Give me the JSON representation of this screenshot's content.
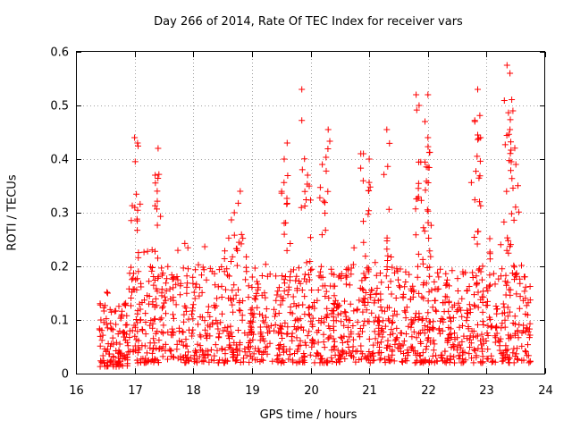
{
  "chart_data": {
    "type": "scatter",
    "title": "Day 266 of 2014, Rate Of TEC Index for receiver vars",
    "xlabel": "GPS time / hours",
    "ylabel": "ROTI / TECUs",
    "xlim": [
      16,
      24
    ],
    "ylim": [
      0,
      0.6
    ],
    "x_ticks": [
      "16",
      "17",
      "18",
      "19",
      "20",
      "21",
      "22",
      "23",
      "24"
    ],
    "y_ticks": [
      "0",
      "0.1",
      "0.2",
      "0.3",
      "0.4",
      "0.5",
      "0.6"
    ],
    "grid": true,
    "marker": "+",
    "color": "#ff0000",
    "series": [
      {
        "name": "ROTI",
        "x_range": [
          16.4,
          23.75
        ],
        "typical_range": [
          0.02,
          0.2
        ],
        "peaks": [
          {
            "x": 17.0,
            "y": 0.44
          },
          {
            "x": 17.05,
            "y": 0.43
          },
          {
            "x": 17.4,
            "y": 0.42
          },
          {
            "x": 17.35,
            "y": 0.37
          },
          {
            "x": 18.8,
            "y": 0.34
          },
          {
            "x": 18.7,
            "y": 0.3
          },
          {
            "x": 19.6,
            "y": 0.43
          },
          {
            "x": 19.55,
            "y": 0.4
          },
          {
            "x": 19.85,
            "y": 0.53
          },
          {
            "x": 19.95,
            "y": 0.37
          },
          {
            "x": 20.2,
            "y": 0.39
          },
          {
            "x": 20.3,
            "y": 0.455
          },
          {
            "x": 20.9,
            "y": 0.41
          },
          {
            "x": 21.0,
            "y": 0.4
          },
          {
            "x": 21.3,
            "y": 0.455
          },
          {
            "x": 21.8,
            "y": 0.52
          },
          {
            "x": 21.85,
            "y": 0.5
          },
          {
            "x": 22.0,
            "y": 0.52
          },
          {
            "x": 21.95,
            "y": 0.47
          },
          {
            "x": 22.0,
            "y": 0.44
          },
          {
            "x": 22.85,
            "y": 0.53
          },
          {
            "x": 22.8,
            "y": 0.47
          },
          {
            "x": 22.85,
            "y": 0.445
          },
          {
            "x": 23.35,
            "y": 0.575
          },
          {
            "x": 23.4,
            "y": 0.56
          },
          {
            "x": 23.45,
            "y": 0.49
          },
          {
            "x": 23.4,
            "y": 0.455
          },
          {
            "x": 23.5,
            "y": 0.39
          }
        ]
      }
    ]
  }
}
